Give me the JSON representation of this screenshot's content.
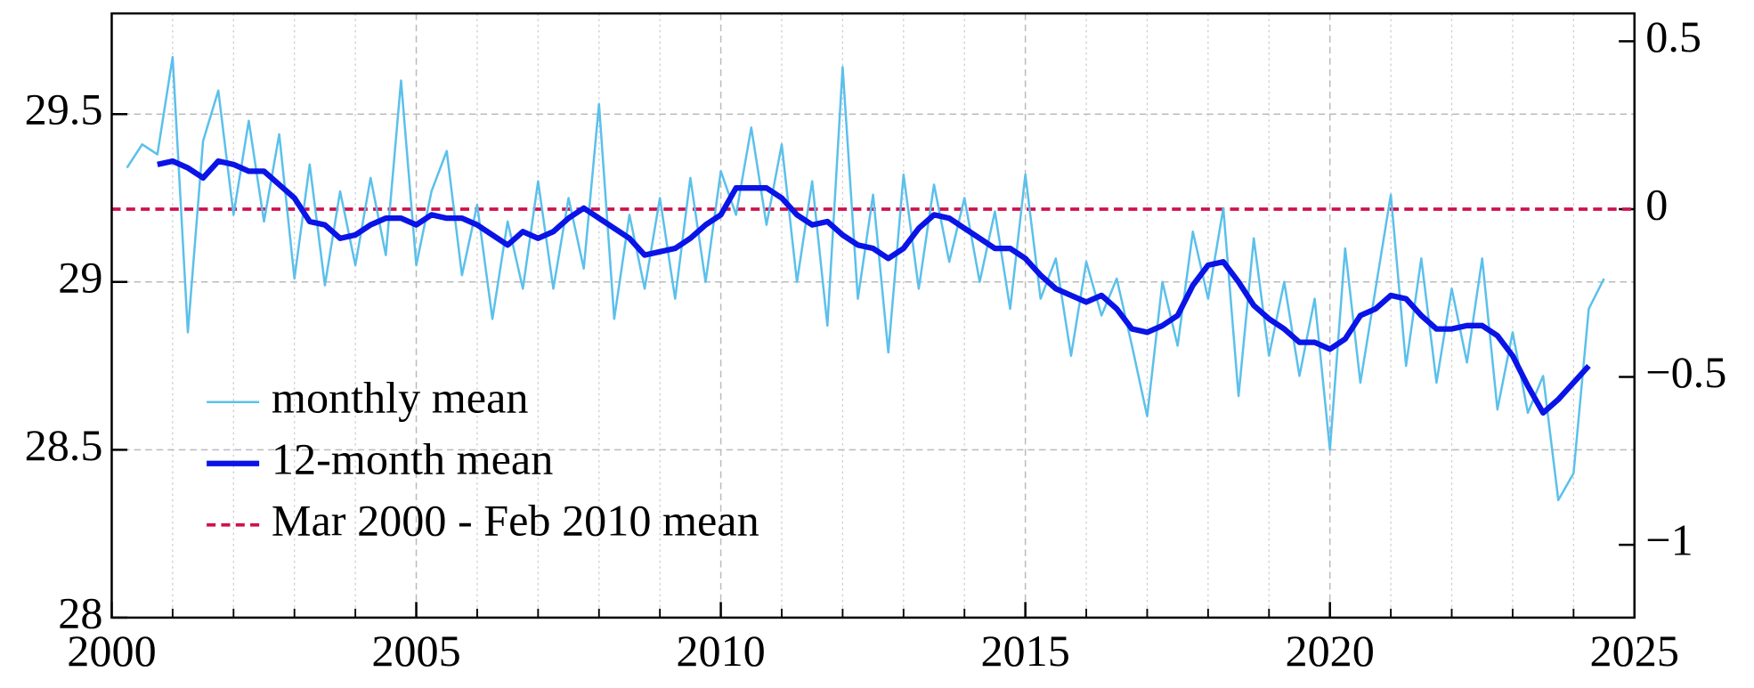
{
  "chart_data": {
    "type": "line",
    "x": [
      2000.25,
      2000.5,
      2000.75,
      2001,
      2001.25,
      2001.5,
      2001.75,
      2002,
      2002.25,
      2002.5,
      2002.75,
      2003,
      2003.25,
      2003.5,
      2003.75,
      2004,
      2004.25,
      2004.5,
      2004.75,
      2005,
      2005.25,
      2005.5,
      2005.75,
      2006,
      2006.25,
      2006.5,
      2006.75,
      2007,
      2007.25,
      2007.5,
      2007.75,
      2008,
      2008.25,
      2008.5,
      2008.75,
      2009,
      2009.25,
      2009.5,
      2009.75,
      2010,
      2010.25,
      2010.5,
      2010.75,
      2011,
      2011.25,
      2011.5,
      2011.75,
      2012,
      2012.25,
      2012.5,
      2012.75,
      2013,
      2013.25,
      2013.5,
      2013.75,
      2014,
      2014.25,
      2014.5,
      2014.75,
      2015,
      2015.25,
      2015.5,
      2015.75,
      2016,
      2016.25,
      2016.5,
      2016.75,
      2017,
      2017.25,
      2017.5,
      2017.75,
      2018,
      2018.25,
      2018.5,
      2018.75,
      2019,
      2019.25,
      2019.5,
      2019.75,
      2020,
      2020.25,
      2020.5,
      2020.75,
      2021,
      2021.25,
      2021.5,
      2021.75,
      2022,
      2022.25,
      2022.5,
      2022.75,
      2023,
      2023.25,
      2023.5,
      2023.75,
      2024,
      2024.25,
      2024.5
    ],
    "series": [
      {
        "name": "monthly mean",
        "color": "#5bc0eb",
        "width": 2,
        "values": [
          29.34,
          29.41,
          29.38,
          29.67,
          28.85,
          29.42,
          29.57,
          29.2,
          29.48,
          29.18,
          29.44,
          29.01,
          29.35,
          28.99,
          29.27,
          29.05,
          29.31,
          29.08,
          29.6,
          29.05,
          29.27,
          29.39,
          29.02,
          29.23,
          28.89,
          29.18,
          28.98,
          29.3,
          28.98,
          29.25,
          29.04,
          29.53,
          28.89,
          29.2,
          28.98,
          29.25,
          28.95,
          29.31,
          29.0,
          29.33,
          29.2,
          29.46,
          29.17,
          29.41,
          29.0,
          29.3,
          28.87,
          29.64,
          28.95,
          29.26,
          28.79,
          29.32,
          28.98,
          29.29,
          29.06,
          29.25,
          29.0,
          29.21,
          28.92,
          29.32,
          28.95,
          29.07,
          28.78,
          29.06,
          28.9,
          29.01,
          28.81,
          28.6,
          29.0,
          28.81,
          29.15,
          28.95,
          29.22,
          28.66,
          29.13,
          28.78,
          29.0,
          28.72,
          28.95,
          28.5,
          29.1,
          28.7,
          28.98,
          29.26,
          28.75,
          29.07,
          28.7,
          28.98,
          28.76,
          29.07,
          28.62,
          28.85,
          28.61,
          28.72,
          28.35,
          28.43,
          28.92,
          29.01
        ]
      },
      {
        "name": "12-month mean",
        "color": "#0a14e6",
        "width": 5,
        "values": [
          null,
          null,
          29.35,
          29.36,
          29.34,
          29.31,
          29.36,
          29.35,
          29.33,
          29.33,
          29.29,
          29.25,
          29.18,
          29.17,
          29.13,
          29.14,
          29.17,
          29.19,
          29.19,
          29.17,
          29.2,
          29.19,
          29.19,
          29.17,
          29.14,
          29.11,
          29.15,
          29.13,
          29.15,
          29.19,
          29.22,
          29.19,
          29.16,
          29.13,
          29.08,
          29.09,
          29.1,
          29.13,
          29.17,
          29.2,
          29.28,
          29.28,
          29.28,
          29.25,
          29.2,
          29.17,
          29.18,
          29.14,
          29.11,
          29.1,
          29.07,
          29.1,
          29.16,
          29.2,
          29.19,
          29.16,
          29.13,
          29.1,
          29.1,
          29.07,
          29.02,
          28.98,
          28.96,
          28.94,
          28.96,
          28.92,
          28.86,
          28.85,
          28.87,
          28.9,
          28.99,
          29.05,
          29.06,
          29.0,
          28.93,
          28.89,
          28.86,
          28.82,
          28.82,
          28.8,
          28.83,
          28.9,
          28.92,
          28.96,
          28.95,
          28.9,
          28.86,
          28.86,
          28.87,
          28.87,
          28.84,
          28.78,
          28.69,
          28.61,
          28.65,
          28.7,
          28.75,
          null
        ]
      }
    ],
    "reference": {
      "name": "Mar 2000 - Feb 2010 mean",
      "value": 29.217,
      "color": "#d0104c"
    },
    "xlim": [
      2000,
      2025
    ],
    "xticks": [
      2000,
      2005,
      2010,
      2015,
      2020,
      2025
    ],
    "xminorticks": [
      2001,
      2002,
      2003,
      2004,
      2006,
      2007,
      2008,
      2009,
      2011,
      2012,
      2013,
      2014,
      2016,
      2017,
      2018,
      2019,
      2021,
      2022,
      2023,
      2024
    ],
    "ylim": [
      28,
      29.8
    ],
    "yticks": [
      28,
      28.5,
      29,
      29.5
    ],
    "y2lim": [
      -1.217,
      0.583
    ],
    "y2ticks": [
      {
        "value": 0.5,
        "label": "0.5"
      },
      {
        "value": 0,
        "label": "0"
      },
      {
        "value": -0.5,
        "label": "−0.5"
      },
      {
        "value": -1,
        "label": "−1"
      }
    ],
    "grid": true,
    "legend": "lower left"
  }
}
